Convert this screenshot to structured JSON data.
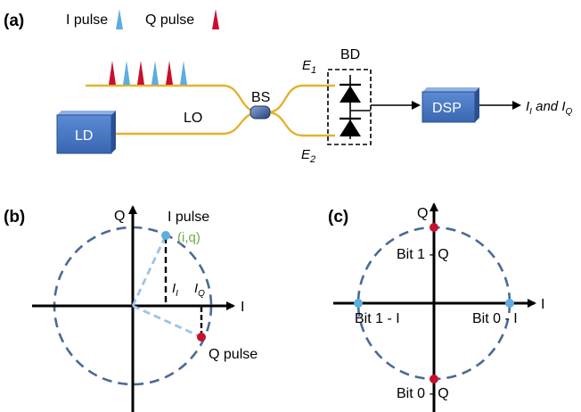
{
  "panel_a": {
    "label": "(a)",
    "legend": {
      "i_pulse": "I pulse",
      "q_pulse": "Q pulse"
    },
    "laser_label": "LD",
    "lo_label": "LO",
    "bs_label": "BS",
    "bd_label": "BD",
    "e1_label": "E",
    "e1_sub": "1",
    "e2_label": "E",
    "e2_sub": "2",
    "dsp_label": "DSP",
    "output": {
      "i": "I",
      "i_sub": "I",
      "and": " and ",
      "q": "I",
      "q_sub": "Q"
    },
    "pulse_train": [
      "Q",
      "I",
      "Q",
      "I",
      "Q",
      "I"
    ],
    "colors": {
      "i_pulse": "#5aaee0",
      "q_pulse": "#c8102e",
      "fiber": "#e5b22e",
      "box": "#4472c4"
    }
  },
  "panel_b": {
    "label": "(b)",
    "axis_q": "Q",
    "axis_i": "I",
    "i_pulse_label": "I pulse",
    "iq_label": "(i,q)",
    "ii_label": "I",
    "ii_sub": "I",
    "iq_proj_label": "I",
    "iq_proj_sub": "Q",
    "q_pulse_label": "Q pulse",
    "colors": {
      "iq_label": "#70ad47",
      "circle": "#4a6a96"
    }
  },
  "panel_c": {
    "label": "(c)",
    "axis_q": "Q",
    "axis_i": "I",
    "bit1_q": "Bit 1 - Q",
    "bit1_i": "Bit 1 - I",
    "bit0_i": "Bit 0 - I",
    "bit0_q": "Bit 0 - Q"
  }
}
